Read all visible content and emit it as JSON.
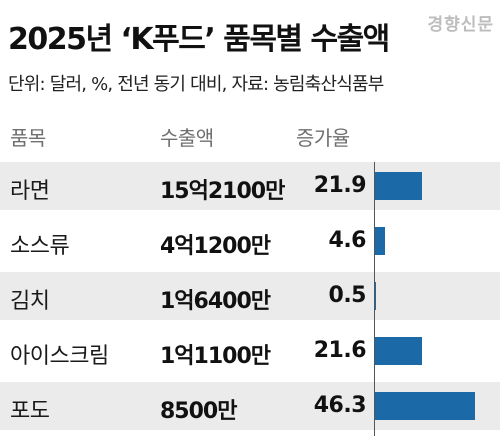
{
  "header": {
    "title": "2025년 ‘K푸드’ 품목별 수출액",
    "brand": "경향신문",
    "subtitle": "단위: 달러, %, 전년 동기 대비, 자료: 농림축산식품부"
  },
  "table": {
    "col_item": "품목",
    "col_amount": "수출액",
    "col_rate": "증가율",
    "rows": [
      {
        "item": "라면",
        "amount": "15억2100만",
        "rate": "21.9"
      },
      {
        "item": "소스류",
        "amount": "4억1200만",
        "rate": "4.6"
      },
      {
        "item": "김치",
        "amount": "1억6400만",
        "rate": "0.5"
      },
      {
        "item": "아이스크림",
        "amount": "1억1100만",
        "rate": "21.6"
      },
      {
        "item": "포도",
        "amount": "8500만",
        "rate": "46.3"
      }
    ]
  },
  "chart_data": {
    "type": "bar",
    "title": "2025년 ‘K푸드’ 품목별 수출액",
    "subtitle": "단위: 달러, %, 전년 동기 대비, 자료: 농림축산식품부",
    "categories": [
      "라면",
      "소스류",
      "김치",
      "아이스크림",
      "포도"
    ],
    "series": [
      {
        "name": "증가율",
        "values": [
          21.9,
          4.6,
          0.5,
          21.6,
          46.3
        ]
      }
    ],
    "export_amounts": [
      "15억2100만",
      "4억1200만",
      "1억6400만",
      "1억1100만",
      "8500만"
    ],
    "xlim": [
      0,
      46.3
    ],
    "bar_color": "#1b6aa7",
    "orientation": "horizontal",
    "grid": false
  }
}
